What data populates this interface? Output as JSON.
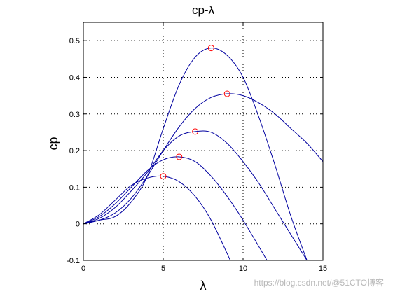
{
  "chart_data": {
    "type": "line",
    "title": "cp-λ",
    "xlabel": "λ",
    "ylabel": "cp",
    "xlim": [
      0,
      15
    ],
    "ylim": [
      -0.1,
      0.55
    ],
    "xticks": [
      0,
      5,
      10,
      15
    ],
    "yticks": [
      -0.1,
      0,
      0.1,
      0.2,
      0.3,
      0.4,
      0.5
    ],
    "ytick_labels": [
      "-0.1",
      "0",
      "0.1",
      "0.2",
      "0.3",
      "0.4",
      "0.5"
    ],
    "grid": true,
    "grid_style": "dotted",
    "line_color": "#0000a0",
    "marker_color": "#ff0000",
    "series": [
      {
        "x": [
          0,
          1,
          2,
          3,
          4,
          5,
          6,
          7,
          8,
          9,
          10,
          11,
          12,
          13,
          14
        ],
        "y": [
          0,
          0.01,
          0.02,
          0.06,
          0.13,
          0.26,
          0.38,
          0.455,
          0.48,
          0.46,
          0.4,
          0.29,
          0.16,
          0.02,
          -0.1
        ]
      },
      {
        "x": [
          0,
          1,
          2,
          3,
          4,
          5,
          6,
          7,
          8,
          9,
          10,
          11,
          12,
          13,
          14,
          15
        ],
        "y": [
          0,
          0.01,
          0.03,
          0.07,
          0.13,
          0.2,
          0.265,
          0.315,
          0.345,
          0.355,
          0.35,
          0.33,
          0.3,
          0.26,
          0.22,
          0.17
        ]
      },
      {
        "x": [
          0,
          1,
          2,
          3,
          4,
          5,
          6,
          7,
          8,
          9,
          10,
          11,
          12,
          13,
          14
        ],
        "y": [
          0,
          0.015,
          0.045,
          0.09,
          0.14,
          0.2,
          0.24,
          0.252,
          0.25,
          0.22,
          0.17,
          0.11,
          0.04,
          -0.03,
          -0.1
        ]
      },
      {
        "x": [
          0,
          1,
          2,
          3,
          4,
          5,
          6,
          7,
          8,
          9,
          10,
          11.5
        ],
        "y": [
          0,
          0.02,
          0.055,
          0.1,
          0.145,
          0.175,
          0.183,
          0.17,
          0.13,
          0.075,
          0.01,
          -0.1
        ]
      },
      {
        "x": [
          0,
          1,
          2,
          3,
          4,
          5,
          6,
          7,
          8,
          9.2
        ],
        "y": [
          0,
          0.025,
          0.065,
          0.105,
          0.125,
          0.13,
          0.115,
          0.075,
          0.01,
          -0.1
        ]
      }
    ],
    "markers": [
      {
        "x": 8,
        "y": 0.48
      },
      {
        "x": 9,
        "y": 0.355
      },
      {
        "x": 7,
        "y": 0.252
      },
      {
        "x": 6,
        "y": 0.183
      },
      {
        "x": 5,
        "y": 0.13
      }
    ]
  },
  "watermark": "https://blog.csdn.net/@51CTO博客"
}
